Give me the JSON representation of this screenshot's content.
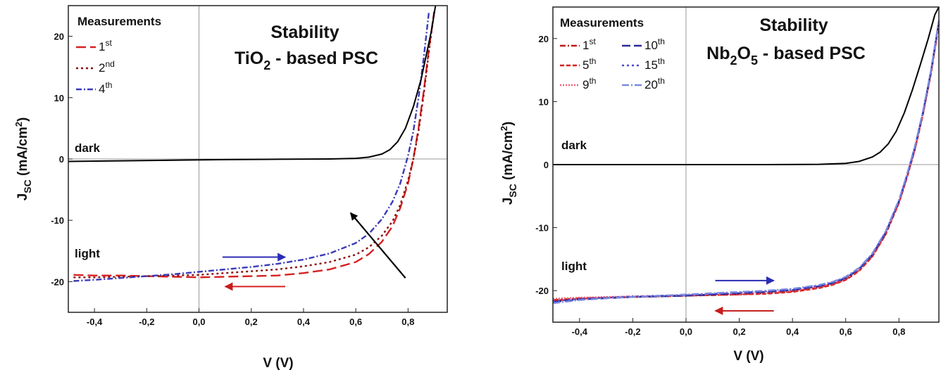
{
  "chart_data": [
    {
      "type": "line",
      "title_line1": "Stability",
      "title_line2_pre": "TiO",
      "title_line2_sub": "2",
      "title_line2_post": " - based PSC",
      "xlabel": "V  (V)",
      "ylabel_main": "J",
      "ylabel_sub": "SC",
      "ylabel_units": " (mA/cm",
      "ylabel_sup": "2",
      "ylabel_close": ")",
      "xlim": [
        -0.5,
        0.95
      ],
      "ylim": [
        -25,
        25
      ],
      "xticks": [
        {
          "v": -0.4,
          "label": "-0,4"
        },
        {
          "v": -0.2,
          "label": "-0,2"
        },
        {
          "v": 0.0,
          "label": "0,0"
        },
        {
          "v": 0.2,
          "label": "0,2"
        },
        {
          "v": 0.4,
          "label": "0,4"
        },
        {
          "v": 0.6,
          "label": "0,6"
        },
        {
          "v": 0.8,
          "label": "0,8"
        }
      ],
      "yticks": [
        {
          "v": 20,
          "label": "20"
        },
        {
          "v": 10,
          "label": "10"
        },
        {
          "v": 0,
          "label": "0"
        },
        {
          "v": -10,
          "label": "-10"
        },
        {
          "v": -20,
          "label": "-20"
        }
      ],
      "legend_title": "Measurements",
      "annotations": {
        "dark": "dark",
        "light": "light"
      },
      "series": [
        {
          "legend": "1",
          "legend_sup": "st",
          "color": "#d62020",
          "dash": "14,6",
          "x": [
            -0.48,
            -0.4,
            -0.3,
            -0.2,
            -0.1,
            0.0,
            0.1,
            0.2,
            0.3,
            0.4,
            0.5,
            0.6,
            0.65,
            0.7,
            0.74,
            0.77,
            0.8,
            0.82,
            0.84,
            0.86,
            0.88,
            0.9
          ],
          "y": [
            -18.9,
            -19.0,
            -19.0,
            -19.1,
            -19.2,
            -19.3,
            -19.2,
            -19.1,
            -19.0,
            -18.6,
            -18.0,
            -16.8,
            -15.5,
            -13.5,
            -11.0,
            -8.0,
            -4.0,
            0.0,
            5.0,
            11.0,
            18.0,
            24.0
          ]
        },
        {
          "legend": "2",
          "legend_sup": "nd",
          "color": "#8b1010",
          "dash": "3,4",
          "x": [
            -0.48,
            -0.4,
            -0.3,
            -0.2,
            -0.1,
            0.0,
            0.1,
            0.2,
            0.3,
            0.4,
            0.5,
            0.6,
            0.65,
            0.7,
            0.74,
            0.77,
            0.8,
            0.82,
            0.84,
            0.86,
            0.88,
            0.9
          ],
          "y": [
            -19.3,
            -19.3,
            -19.2,
            -19.1,
            -19.0,
            -18.9,
            -18.6,
            -18.3,
            -18.0,
            -17.5,
            -16.8,
            -15.6,
            -14.4,
            -12.5,
            -10.2,
            -7.5,
            -3.5,
            0.0,
            4.5,
            10.5,
            17.5,
            24.0
          ]
        },
        {
          "legend": "4",
          "legend_sup": "th",
          "color": "#3a3ab8",
          "dash": "8,3,2,3",
          "x": [
            -0.48,
            -0.4,
            -0.3,
            -0.2,
            -0.1,
            0.0,
            0.1,
            0.2,
            0.3,
            0.4,
            0.5,
            0.6,
            0.65,
            0.7,
            0.74,
            0.77,
            0.8,
            0.82,
            0.84,
            0.86,
            0.88
          ],
          "y": [
            -19.9,
            -19.7,
            -19.4,
            -19.1,
            -18.8,
            -18.4,
            -18.0,
            -17.6,
            -17.1,
            -16.4,
            -15.4,
            -13.7,
            -12.2,
            -9.8,
            -7.0,
            -4.0,
            0.5,
            4.5,
            10.0,
            16.5,
            24.0
          ]
        },
        {
          "legend": "",
          "legend_sup": "",
          "color": "#000000",
          "dash": "",
          "x": [
            -0.5,
            -0.3,
            -0.1,
            0.1,
            0.3,
            0.5,
            0.6,
            0.65,
            0.7,
            0.73,
            0.76,
            0.79,
            0.82,
            0.85,
            0.87,
            0.89,
            0.905
          ],
          "y": [
            -0.4,
            -0.3,
            -0.2,
            -0.1,
            -0.05,
            0.0,
            0.1,
            0.3,
            0.8,
            1.5,
            2.8,
            5.0,
            8.5,
            13.0,
            17.0,
            21.0,
            25.0
          ]
        }
      ],
      "arrows": [
        {
          "from": [
            0.09,
            -16.0
          ],
          "to": [
            0.33,
            -16.0
          ],
          "color": "#2b2bb5"
        },
        {
          "from": [
            0.33,
            -20.8
          ],
          "to": [
            0.1,
            -20.8
          ],
          "color": "#d62020"
        },
        {
          "from": [
            0.79,
            -19.4
          ],
          "to": [
            0.58,
            -8.8
          ],
          "color": "#000000"
        }
      ]
    },
    {
      "type": "line",
      "title_line1": "Stability",
      "title_line2_pre": "Nb",
      "title_line2_sub": "2",
      "title_line2_mid": "O",
      "title_line2_sub2": "5",
      "title_line2_post": " - based PSC",
      "xlabel": "V (V)",
      "ylabel_main": "J",
      "ylabel_sub": "SC",
      "ylabel_units": " (mA/cm",
      "ylabel_sup": "2",
      "ylabel_close": ")",
      "xlim": [
        -0.5,
        0.95
      ],
      "ylim": [
        -25,
        25
      ],
      "xticks": [
        {
          "v": -0.4,
          "label": "-0,4"
        },
        {
          "v": -0.2,
          "label": "-0,2"
        },
        {
          "v": 0.0,
          "label": "0,0"
        },
        {
          "v": 0.2,
          "label": "0,2"
        },
        {
          "v": 0.4,
          "label": "0,4"
        },
        {
          "v": 0.6,
          "label": "0,6"
        },
        {
          "v": 0.8,
          "label": "0,8"
        }
      ],
      "yticks": [
        {
          "v": 20,
          "label": "20"
        },
        {
          "v": 10,
          "label": "10"
        },
        {
          "v": 0,
          "label": "0"
        },
        {
          "v": -10,
          "label": "-10"
        },
        {
          "v": -20,
          "label": "-20"
        }
      ],
      "legend_title": "Measurements",
      "annotations": {
        "dark": "dark",
        "light": "light"
      },
      "series": [
        {
          "legend": "1",
          "legend_sup": "st",
          "color": "#c01818",
          "dash": "8,3,2,3",
          "x": [
            -0.5,
            -0.4,
            -0.3,
            -0.2,
            -0.1,
            0.0,
            0.1,
            0.2,
            0.3,
            0.4,
            0.5,
            0.55,
            0.6,
            0.65,
            0.7,
            0.75,
            0.8,
            0.83,
            0.86,
            0.89,
            0.92,
            0.95
          ],
          "y": [
            -21.5,
            -21.2,
            -21.1,
            -21.0,
            -20.9,
            -20.8,
            -20.7,
            -20.6,
            -20.4,
            -20.1,
            -19.5,
            -19.0,
            -18.2,
            -16.8,
            -14.5,
            -11.0,
            -6.0,
            -2.0,
            2.5,
            8.0,
            14.5,
            22.5
          ]
        },
        {
          "legend": "5",
          "legend_sup": "th",
          "color": "#d62020",
          "dash": "6,3",
          "x": [
            -0.5,
            -0.4,
            -0.3,
            -0.2,
            -0.1,
            0.0,
            0.1,
            0.2,
            0.3,
            0.4,
            0.5,
            0.55,
            0.6,
            0.65,
            0.7,
            0.75,
            0.8,
            0.83,
            0.86,
            0.89,
            0.92,
            0.95
          ],
          "y": [
            -21.6,
            -21.3,
            -21.1,
            -21.0,
            -20.9,
            -20.8,
            -20.7,
            -20.6,
            -20.5,
            -20.2,
            -19.6,
            -19.1,
            -18.3,
            -16.9,
            -14.6,
            -11.1,
            -6.1,
            -2.1,
            2.4,
            7.9,
            14.4,
            22.3
          ]
        },
        {
          "legend": "9",
          "legend_sup": "th",
          "color": "#f06070",
          "dash": "2,2",
          "x": [
            -0.5,
            -0.4,
            -0.3,
            -0.2,
            -0.1,
            0.0,
            0.1,
            0.2,
            0.3,
            0.4,
            0.5,
            0.55,
            0.6,
            0.65,
            0.7,
            0.75,
            0.8,
            0.83,
            0.86,
            0.89,
            0.92,
            0.95
          ],
          "y": [
            -21.3,
            -21.1,
            -21.0,
            -20.9,
            -20.8,
            -20.7,
            -20.6,
            -20.5,
            -20.3,
            -20.0,
            -19.4,
            -18.9,
            -18.1,
            -16.7,
            -14.4,
            -10.9,
            -5.9,
            -1.9,
            2.6,
            8.1,
            14.6,
            22.6
          ]
        },
        {
          "legend": "10",
          "legend_sup": "th",
          "color": "#2a2a9a",
          "dash": "12,5",
          "x": [
            -0.5,
            -0.4,
            -0.3,
            -0.2,
            -0.1,
            0.0,
            0.1,
            0.2,
            0.3,
            0.4,
            0.5,
            0.55,
            0.6,
            0.65,
            0.7,
            0.75,
            0.8,
            0.83,
            0.86,
            0.89,
            0.92,
            0.95
          ],
          "y": [
            -21.8,
            -21.4,
            -21.2,
            -21.0,
            -20.9,
            -20.8,
            -20.6,
            -20.4,
            -20.2,
            -19.9,
            -19.3,
            -18.8,
            -18.0,
            -16.6,
            -14.3,
            -10.8,
            -5.8,
            -1.8,
            2.7,
            8.2,
            14.7,
            22.7
          ]
        },
        {
          "legend": "15",
          "legend_sup": "th",
          "color": "#4a4ad0",
          "dash": "3,4",
          "x": [
            -0.5,
            -0.4,
            -0.3,
            -0.2,
            -0.1,
            0.0,
            0.1,
            0.2,
            0.3,
            0.4,
            0.5,
            0.55,
            0.6,
            0.65,
            0.7,
            0.75,
            0.8,
            0.83,
            0.86,
            0.89,
            0.92,
            0.95
          ],
          "y": [
            -21.7,
            -21.3,
            -21.1,
            -20.9,
            -20.8,
            -20.7,
            -20.5,
            -20.3,
            -20.1,
            -19.8,
            -19.2,
            -18.7,
            -17.9,
            -16.5,
            -14.2,
            -10.7,
            -5.7,
            -1.7,
            2.8,
            8.3,
            14.8,
            22.8
          ]
        },
        {
          "legend": "20",
          "legend_sup": "th",
          "color": "#7a8ae0",
          "dash": "10,3,2,3",
          "x": [
            -0.5,
            -0.4,
            -0.3,
            -0.2,
            -0.1,
            0.0,
            0.1,
            0.2,
            0.3,
            0.4,
            0.5,
            0.55,
            0.6,
            0.65,
            0.7,
            0.75,
            0.8,
            0.83,
            0.86,
            0.89,
            0.92,
            0.95
          ],
          "y": [
            -22.0,
            -21.5,
            -21.2,
            -21.0,
            -20.8,
            -20.6,
            -20.4,
            -20.2,
            -20.0,
            -19.7,
            -19.1,
            -18.6,
            -17.8,
            -16.4,
            -14.1,
            -10.6,
            -5.6,
            -1.6,
            2.9,
            8.4,
            14.9,
            22.9
          ]
        },
        {
          "legend": "",
          "legend_sup": "",
          "color": "#000000",
          "dash": "",
          "x": [
            -0.5,
            -0.3,
            -0.1,
            0.1,
            0.3,
            0.5,
            0.6,
            0.65,
            0.7,
            0.73,
            0.76,
            0.79,
            0.82,
            0.85,
            0.88,
            0.91,
            0.935,
            0.95
          ],
          "y": [
            0.0,
            0.0,
            0.0,
            0.0,
            0.0,
            0.05,
            0.2,
            0.5,
            1.2,
            2.0,
            3.3,
            5.3,
            8.2,
            11.8,
            15.8,
            20.0,
            23.8,
            25.0
          ]
        }
      ],
      "arrows": [
        {
          "from": [
            0.11,
            -18.4
          ],
          "to": [
            0.33,
            -18.4
          ],
          "color": "#2b2bb5"
        },
        {
          "from": [
            0.33,
            -23.2
          ],
          "to": [
            0.11,
            -23.2
          ],
          "color": "#c01818"
        }
      ]
    }
  ]
}
